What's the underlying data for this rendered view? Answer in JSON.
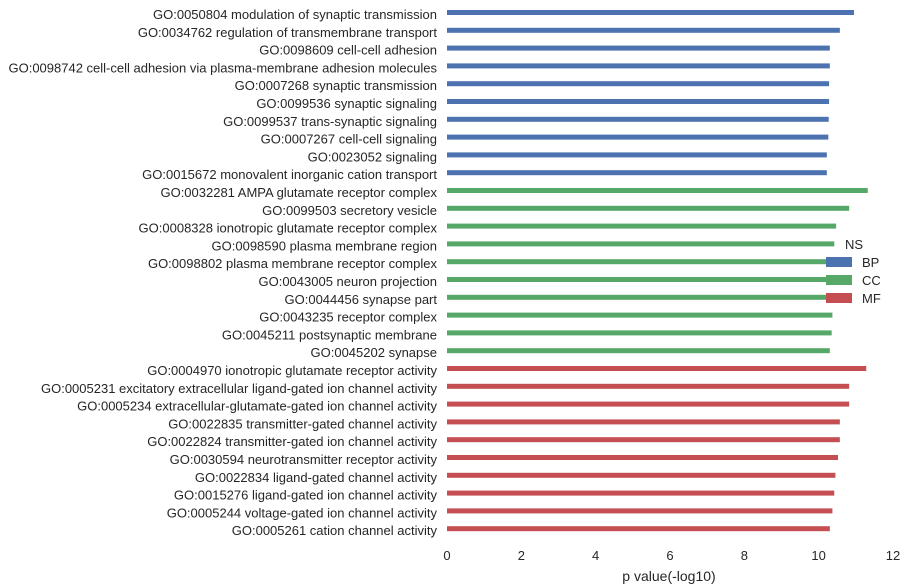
{
  "chart_data": {
    "type": "bar",
    "orientation": "horizontal",
    "categories": [
      "GO:0050804 modulation of synaptic transmission",
      "GO:0034762 regulation of transmembrane transport",
      "GO:0098609 cell-cell adhesion",
      "GO:0098742 cell-cell adhesion via plasma-membrane adhesion molecules",
      "GO:0007268 synaptic transmission",
      "GO:0099536 synaptic signaling",
      "GO:0099537 trans-synaptic signaling",
      "GO:0007267 cell-cell signaling",
      "GO:0023052 signaling",
      "GO:0015672 monovalent inorganic cation transport",
      "GO:0032281 AMPA glutamate receptor complex",
      "GO:0099503 secretory vesicle",
      "GO:0008328 ionotropic glutamate receptor complex",
      "GO:0098590 plasma membrane region",
      "GO:0098802 plasma membrane receptor complex",
      "GO:0043005 neuron projection",
      "GO:0044456 synapse part",
      "GO:0043235 receptor complex",
      "GO:0045211 postsynaptic membrane",
      "GO:0045202 synapse",
      "GO:0004970 ionotropic glutamate receptor activity",
      "GO:0005231 excitatory extracellular ligand-gated ion channel activity",
      "GO:0005234 extracellular-glutamate-gated ion channel activity",
      "GO:0022835 transmitter-gated channel activity",
      "GO:0022824 transmitter-gated ion channel activity",
      "GO:0030594 neurotransmitter receptor activity",
      "GO:0022834 ligand-gated channel activity",
      "GO:0015276 ligand-gated ion channel activity",
      "GO:0005244 voltage-gated ion channel activity",
      "GO:0005261 cation channel activity"
    ],
    "values": [
      10.95,
      10.57,
      10.3,
      10.3,
      10.28,
      10.28,
      10.27,
      10.26,
      10.22,
      10.22,
      11.32,
      10.82,
      10.47,
      10.42,
      10.42,
      10.4,
      10.4,
      10.37,
      10.35,
      10.3,
      11.28,
      10.82,
      10.82,
      10.57,
      10.57,
      10.52,
      10.45,
      10.42,
      10.37,
      10.3
    ],
    "groups": [
      "BP",
      "BP",
      "BP",
      "BP",
      "BP",
      "BP",
      "BP",
      "BP",
      "BP",
      "BP",
      "CC",
      "CC",
      "CC",
      "CC",
      "CC",
      "CC",
      "CC",
      "CC",
      "CC",
      "CC",
      "MF",
      "MF",
      "MF",
      "MF",
      "MF",
      "MF",
      "MF",
      "MF",
      "MF",
      "MF"
    ],
    "xlabel": "p value(-log10)",
    "ylabel": "",
    "xlim": [
      0,
      12
    ],
    "xticks": [
      "0",
      "2",
      "4",
      "6",
      "8",
      "10",
      "12"
    ],
    "grid": false,
    "legend": {
      "title": "NS",
      "placement": "right",
      "entries": [
        {
          "name": "BP",
          "color": "#4c72b0"
        },
        {
          "name": "CC",
          "color": "#55a868"
        },
        {
          "name": "MF",
          "color": "#c44e52"
        }
      ]
    }
  }
}
